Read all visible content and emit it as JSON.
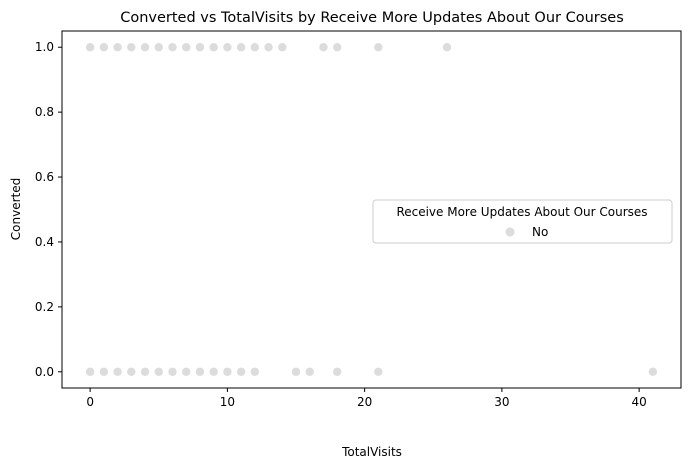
{
  "chart_data": {
    "type": "scatter",
    "title": "Converted vs TotalVisits by Receive More Updates About Our Courses",
    "xlabel": "TotalVisits",
    "ylabel": "Converted",
    "xlim": [
      -2.05,
      43.05
    ],
    "ylim": [
      -0.05,
      1.05
    ],
    "x_ticks": [
      0,
      10,
      20,
      30,
      40
    ],
    "y_ticks": [
      0.0,
      0.2,
      0.4,
      0.6,
      0.8,
      1.0
    ],
    "x_tick_labels": [
      "0",
      "10",
      "20",
      "30",
      "40"
    ],
    "y_tick_labels": [
      "0.0",
      "0.2",
      "0.4",
      "0.6",
      "0.8",
      "1.0"
    ],
    "grid": false,
    "legend": {
      "title": "Receive More Updates About Our Courses",
      "placement": "center-right",
      "entries": [
        "No"
      ]
    },
    "series": [
      {
        "name": "No",
        "color": "#dcdcdc",
        "points": [
          [
            0,
            1
          ],
          [
            1,
            1
          ],
          [
            2,
            1
          ],
          [
            3,
            1
          ],
          [
            4,
            1
          ],
          [
            5,
            1
          ],
          [
            6,
            1
          ],
          [
            7,
            1
          ],
          [
            8,
            1
          ],
          [
            9,
            1
          ],
          [
            10,
            1
          ],
          [
            11,
            1
          ],
          [
            12,
            1
          ],
          [
            13,
            1
          ],
          [
            14,
            1
          ],
          [
            17,
            1
          ],
          [
            18,
            1
          ],
          [
            21,
            1
          ],
          [
            26,
            1
          ],
          [
            0,
            0
          ],
          [
            1,
            0
          ],
          [
            2,
            0
          ],
          [
            3,
            0
          ],
          [
            4,
            0
          ],
          [
            5,
            0
          ],
          [
            6,
            0
          ],
          [
            7,
            0
          ],
          [
            8,
            0
          ],
          [
            9,
            0
          ],
          [
            10,
            0
          ],
          [
            11,
            0
          ],
          [
            12,
            0
          ],
          [
            15,
            0
          ],
          [
            16,
            0
          ],
          [
            18,
            0
          ],
          [
            21,
            0
          ],
          [
            41,
            0
          ]
        ]
      }
    ]
  }
}
